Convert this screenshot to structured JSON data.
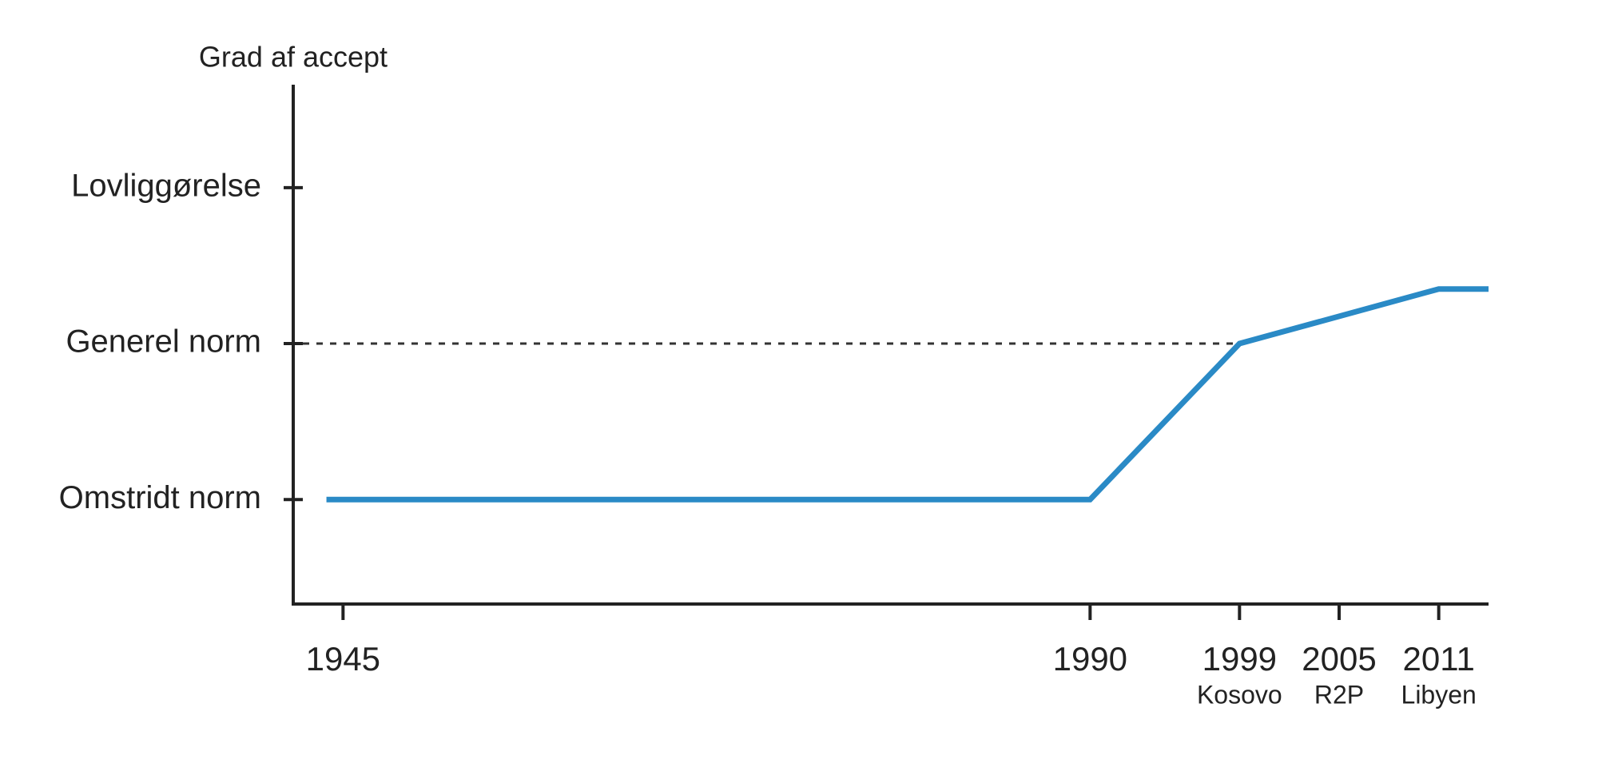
{
  "chart_data": {
    "type": "line",
    "y_label": "Grad af accept",
    "x": [
      1944,
      1990,
      1999,
      2011,
      2014
    ],
    "series": [
      {
        "color": "#2a8ac6",
        "values": [
          1,
          1,
          2,
          2.35,
          2.35
        ]
      }
    ],
    "xlim": [
      1942,
      2014
    ],
    "xticks": [
      1945,
      1990,
      1999,
      2005,
      2011
    ],
    "annotations": [
      {
        "x": 1999,
        "text": "Kosovo"
      },
      {
        "x": 2005,
        "text": "R2P"
      },
      {
        "x": 2011,
        "text": "Libyen"
      }
    ],
    "ylim": [
      0.33,
      3.66
    ],
    "yticks": [
      {
        "value": 1,
        "label": "Omstridt norm"
      },
      {
        "value": 2,
        "label": "Generel norm"
      },
      {
        "value": 3,
        "label": "Lovliggørelse"
      }
    ],
    "reference_line": {
      "y": 2,
      "x_end": 1999,
      "style": "dashed"
    },
    "grid": false
  }
}
